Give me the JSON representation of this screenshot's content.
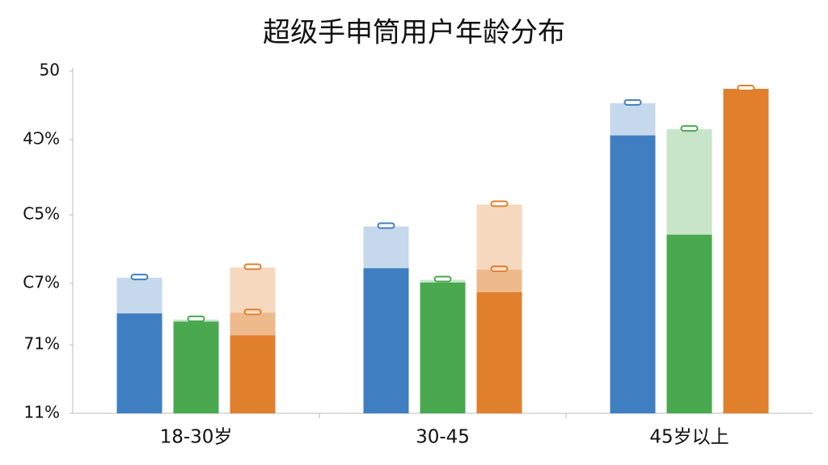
{
  "chart_data": {
    "type": "bar",
    "title": "超级手申筒用户年龄分布",
    "categories": [
      "18-30岁",
      "30-45",
      "45岁以上"
    ],
    "series": [
      {
        "color": "#3f7fc1",
        "values": [
          14.6,
          21.2,
          40.6
        ],
        "mid": [
          0,
          0,
          0
        ],
        "upper": [
          5.2,
          6.1,
          4.7
        ]
      },
      {
        "color": "#4aa84f",
        "values": [
          13.4,
          19.1,
          26.1
        ],
        "mid": [
          0,
          0,
          0
        ],
        "upper": [
          0.3,
          0.4,
          15.4
        ]
      },
      {
        "color": "#e07f2c",
        "values": [
          11.4,
          17.7,
          47.4
        ],
        "mid": [
          3.3,
          3.3,
          0
        ],
        "upper": [
          6.6,
          9.5,
          0
        ]
      }
    ],
    "ylim": [
      0,
      50
    ],
    "yticks": [
      {
        "value": 0,
        "label": "11%"
      },
      {
        "value": 10,
        "label": "71%"
      },
      {
        "value": 19,
        "label": "C7%"
      },
      {
        "value": 29,
        "label": "C5%"
      },
      {
        "value": 40,
        "label": "4Ɔ%"
      },
      50
    ]
  }
}
